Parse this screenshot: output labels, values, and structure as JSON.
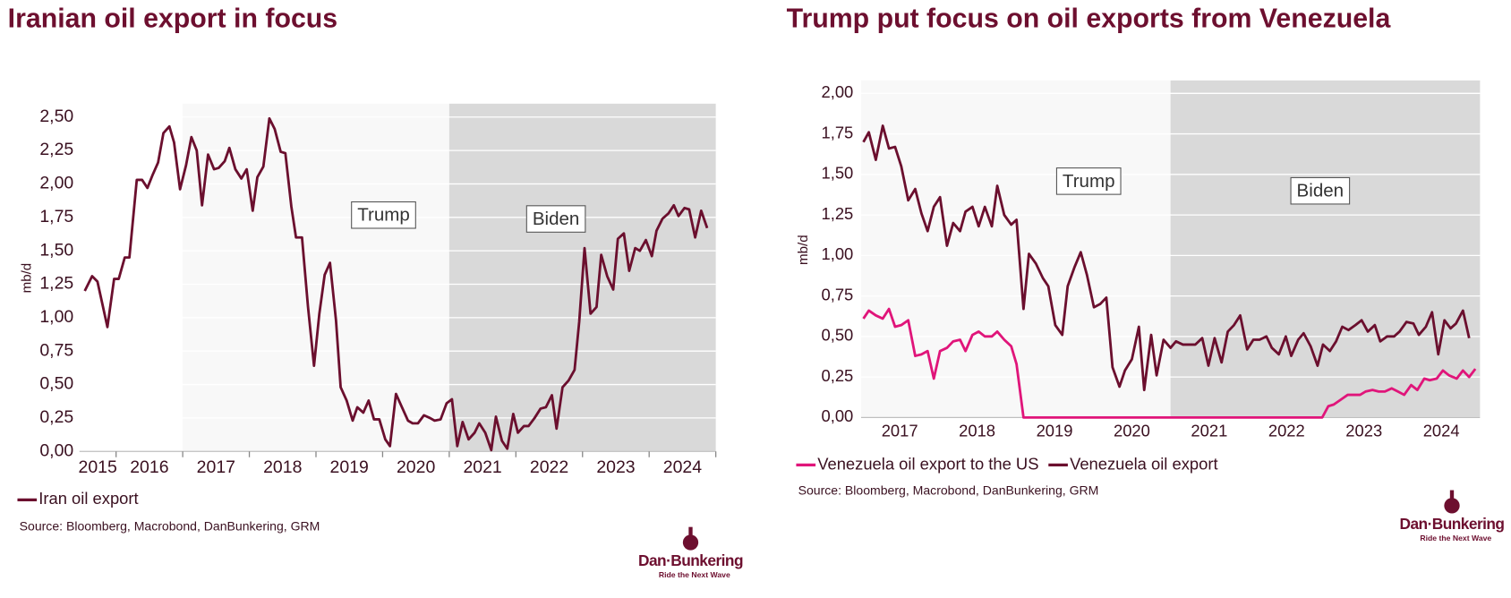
{
  "chart_data": [
    {
      "type": "line",
      "title": "Iranian oil export in focus",
      "ylabel": "mb/d",
      "xlim": [
        2015.45,
        2025
      ],
      "ylim": [
        0,
        2.6
      ],
      "yticks": [
        {
          "value": 0,
          "label": "0,00"
        },
        {
          "value": 0.25,
          "label": "0,25"
        },
        {
          "value": 0.5,
          "label": "0,50"
        },
        {
          "value": 0.75,
          "label": "0,75"
        },
        {
          "value": 1,
          "label": "1,00"
        },
        {
          "value": 1.25,
          "label": "1,25"
        },
        {
          "value": 1.5,
          "label": "1,50"
        },
        {
          "value": 1.75,
          "label": "1,75"
        },
        {
          "value": 2,
          "label": "2,00"
        },
        {
          "value": 2.25,
          "label": "2,25"
        },
        {
          "value": 2.5,
          "label": "2,50"
        }
      ],
      "xticks": [
        2016,
        2017,
        2018,
        2019,
        2020,
        2021,
        2022,
        2023,
        2024,
        2025
      ],
      "x_labels": [
        2015,
        2016,
        2017,
        2018,
        2019,
        2020,
        2021,
        2022,
        2023,
        2024
      ],
      "grid": true,
      "periods": [
        {
          "label": "Trump",
          "start": 2017,
          "end": 2021,
          "color": "#f8f8f8"
        },
        {
          "label": "Biden",
          "start": 2021,
          "end": 2025,
          "color": "#d9d9d9"
        }
      ],
      "series": [
        {
          "name": "Iran oil export",
          "color": "#6b0f2e",
          "x": [
            2015.53,
            2015.64,
            2015.72,
            2015.87,
            2015.97,
            2016.04,
            2016.13,
            2016.2,
            2016.31,
            2016.39,
            2016.47,
            2016.55,
            2016.63,
            2016.71,
            2016.8,
            2016.87,
            2016.96,
            2017.05,
            2017.13,
            2017.21,
            2017.29,
            2017.38,
            2017.47,
            2017.54,
            2017.63,
            2017.7,
            2017.79,
            2017.88,
            2017.96,
            2018.05,
            2018.12,
            2018.21,
            2018.3,
            2018.38,
            2018.47,
            2018.54,
            2018.63,
            2018.7,
            2018.79,
            2018.88,
            2018.97,
            2019.05,
            2019.13,
            2019.21,
            2019.3,
            2019.37,
            2019.46,
            2019.55,
            2019.62,
            2019.71,
            2019.79,
            2019.87,
            2019.95,
            2020.04,
            2020.11,
            2020.2,
            2020.29,
            2020.38,
            2020.45,
            2020.53,
            2020.62,
            2020.71,
            2020.78,
            2020.87,
            2020.96,
            2021.04,
            2021.12,
            2021.2,
            2021.29,
            2021.38,
            2021.45,
            2021.54,
            2021.63,
            2021.7,
            2021.79,
            2021.87,
            2021.96,
            2022.03,
            2022.12,
            2022.19,
            2022.28,
            2022.37,
            2022.45,
            2022.54,
            2022.61,
            2022.7,
            2022.79,
            2022.88,
            2022.95,
            2023.03,
            2023.12,
            2023.21,
            2023.28,
            2023.37,
            2023.46,
            2023.53,
            2023.62,
            2023.7,
            2023.79,
            2023.86,
            2023.95,
            2024.04,
            2024.11,
            2024.2,
            2024.29,
            2024.37,
            2024.44,
            2024.53,
            2024.6,
            2024.69,
            2024.78,
            2024.87
          ],
          "values": [
            1.2,
            1.31,
            1.27,
            0.93,
            1.29,
            1.29,
            1.45,
            1.45,
            2.03,
            2.03,
            1.97,
            2.07,
            2.16,
            2.38,
            2.43,
            2.31,
            1.96,
            2.14,
            2.35,
            2.25,
            1.84,
            2.22,
            2.11,
            2.12,
            2.17,
            2.27,
            2.11,
            2.04,
            2.11,
            1.8,
            2.05,
            2.13,
            2.49,
            2.41,
            2.24,
            2.23,
            1.83,
            1.6,
            1.6,
            1.08,
            0.64,
            1.03,
            1.32,
            1.41,
            0.98,
            0.48,
            0.38,
            0.23,
            0.33,
            0.29,
            0.38,
            0.24,
            0.24,
            0.09,
            0.04,
            0.43,
            0.33,
            0.23,
            0.21,
            0.21,
            0.27,
            0.25,
            0.23,
            0.24,
            0.36,
            0.39,
            0.04,
            0.22,
            0.09,
            0.14,
            0.21,
            0.14,
            0.01,
            0.26,
            0.08,
            0.02,
            0.28,
            0.14,
            0.19,
            0.19,
            0.25,
            0.32,
            0.33,
            0.42,
            0.17,
            0.48,
            0.53,
            0.61,
            0.97,
            1.52,
            1.03,
            1.08,
            1.47,
            1.31,
            1.21,
            1.59,
            1.63,
            1.35,
            1.52,
            1.5,
            1.58,
            1.46,
            1.65,
            1.74,
            1.78,
            1.84,
            1.76,
            1.82,
            1.81,
            1.6,
            1.8,
            1.67
          ]
        }
      ],
      "source": "Source: Bloomberg, Macrobond, DanBunkering, GRM"
    },
    {
      "type": "line",
      "title": "Trump put focus on oil exports from Venezuela",
      "ylabel": "mb/d",
      "xlim": [
        2017,
        2025
      ],
      "ylim": [
        0,
        2.08
      ],
      "yticks": [
        {
          "value": 0,
          "label": "0,00"
        },
        {
          "value": 0.25,
          "label": "0,25"
        },
        {
          "value": 0.5,
          "label": "0,50"
        },
        {
          "value": 0.75,
          "label": "0,75"
        },
        {
          "value": 1,
          "label": "1,00"
        },
        {
          "value": 1.25,
          "label": "1,25"
        },
        {
          "value": 1.5,
          "label": "1,50"
        },
        {
          "value": 1.75,
          "label": "1,75"
        },
        {
          "value": 2,
          "label": "2,00"
        }
      ],
      "x_labels": [
        2017,
        2018,
        2019,
        2020,
        2021,
        2022,
        2023,
        2024
      ],
      "grid": true,
      "periods": [
        {
          "label": "Trump",
          "start": 2017,
          "end": 2021,
          "color": "#f8f8f8"
        },
        {
          "label": "Biden",
          "start": 2021,
          "end": 2025,
          "color": "#d9d9d9"
        }
      ],
      "series": [
        {
          "name": "Venezuela oil export to the US",
          "color": "#e0157a",
          "x": [
            2017.03,
            2017.1,
            2017.19,
            2017.28,
            2017.36,
            2017.44,
            2017.52,
            2017.61,
            2017.7,
            2017.78,
            2017.86,
            2017.94,
            2018.02,
            2018.11,
            2018.19,
            2018.28,
            2018.35,
            2018.44,
            2018.52,
            2018.6,
            2018.69,
            2018.76,
            2018.85,
            2018.94,
            2019.01,
            2019.1,
            2022.96,
            2023.04,
            2023.11,
            2023.2,
            2023.29,
            2023.36,
            2023.45,
            2023.52,
            2023.61,
            2023.69,
            2023.77,
            2023.86,
            2023.94,
            2024.02,
            2024.11,
            2024.19,
            2024.28,
            2024.35,
            2024.44,
            2024.52,
            2024.6,
            2024.7,
            2024.78,
            2024.86,
            2024.94
          ],
          "values": [
            0.61,
            0.66,
            0.63,
            0.61,
            0.67,
            0.56,
            0.57,
            0.6,
            0.38,
            0.39,
            0.41,
            0.24,
            0.41,
            0.43,
            0.47,
            0.48,
            0.41,
            0.51,
            0.53,
            0.5,
            0.5,
            0.53,
            0.48,
            0.44,
            0.33,
            0,
            0,
            0.07,
            0.08,
            0.11,
            0.14,
            0.14,
            0.14,
            0.16,
            0.17,
            0.16,
            0.16,
            0.18,
            0.16,
            0.14,
            0.2,
            0.17,
            0.24,
            0.23,
            0.24,
            0.29,
            0.26,
            0.24,
            0.29,
            0.25,
            0.3
          ]
        },
        {
          "name": "Venezuela oil export",
          "color": "#6b0f2e",
          "x": [
            2017.03,
            2017.1,
            2017.19,
            2017.28,
            2017.36,
            2017.44,
            2017.52,
            2017.61,
            2017.7,
            2017.78,
            2017.86,
            2017.94,
            2018.02,
            2018.11,
            2018.19,
            2018.28,
            2018.35,
            2018.44,
            2018.52,
            2018.6,
            2018.69,
            2018.76,
            2018.85,
            2018.94,
            2019.01,
            2019.1,
            2019.17,
            2019.26,
            2019.35,
            2019.42,
            2019.51,
            2019.6,
            2019.67,
            2019.76,
            2019.84,
            2019.92,
            2020.01,
            2020.09,
            2020.17,
            2020.25,
            2020.34,
            2020.41,
            2020.5,
            2020.59,
            2020.66,
            2020.75,
            2020.82,
            2020.91,
            2021.0,
            2021.07,
            2021.16,
            2021.24,
            2021.32,
            2021.41,
            2021.49,
            2021.57,
            2021.66,
            2021.74,
            2021.82,
            2021.9,
            2021.99,
            2022.07,
            2022.15,
            2022.24,
            2022.31,
            2022.4,
            2022.49,
            2022.56,
            2022.65,
            2022.72,
            2022.81,
            2022.9,
            2022.97,
            2023.06,
            2023.14,
            2023.22,
            2023.3,
            2023.39,
            2023.47,
            2023.55,
            2023.64,
            2023.71,
            2023.8,
            2023.89,
            2023.96,
            2024.05,
            2024.14,
            2024.21,
            2024.3,
            2024.38,
            2024.46,
            2024.54,
            2024.62,
            2024.69,
            2024.78,
            2024.86
          ],
          "values": [
            1.7,
            1.76,
            1.59,
            1.8,
            1.66,
            1.67,
            1.55,
            1.34,
            1.41,
            1.26,
            1.15,
            1.3,
            1.36,
            1.06,
            1.2,
            1.15,
            1.27,
            1.3,
            1.18,
            1.3,
            1.18,
            1.43,
            1.25,
            1.19,
            1.22,
            0.67,
            1.01,
            0.95,
            0.86,
            0.81,
            0.57,
            0.51,
            0.81,
            0.93,
            1.02,
            0.88,
            0.68,
            0.7,
            0.74,
            0.31,
            0.19,
            0.29,
            0.36,
            0.56,
            0.17,
            0.51,
            0.26,
            0.48,
            0.43,
            0.47,
            0.45,
            0.45,
            0.45,
            0.49,
            0.32,
            0.49,
            0.34,
            0.53,
            0.57,
            0.63,
            0.42,
            0.48,
            0.48,
            0.5,
            0.43,
            0.39,
            0.5,
            0.38,
            0.48,
            0.52,
            0.44,
            0.32,
            0.45,
            0.41,
            0.47,
            0.56,
            0.54,
            0.57,
            0.6,
            0.53,
            0.57,
            0.47,
            0.5,
            0.5,
            0.53,
            0.59,
            0.58,
            0.51,
            0.56,
            0.65,
            0.39,
            0.6,
            0.55,
            0.58,
            0.66,
            0.49
          ]
        }
      ],
      "source": "Source: Bloomberg, Macrobond, DanBunkering, GRM"
    }
  ],
  "logo": {
    "name": "Dan·Bunkering",
    "tagline": "Ride the Next Wave"
  }
}
